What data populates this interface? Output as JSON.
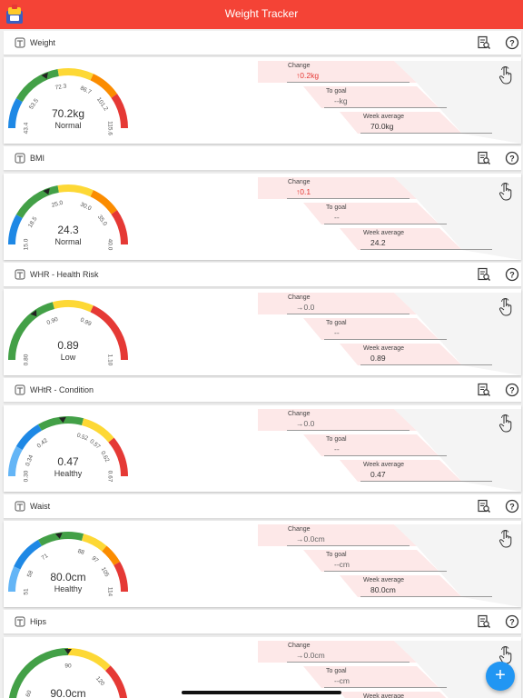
{
  "app": {
    "title": "Weight Tracker"
  },
  "colors": {
    "appbar": "#f44336",
    "fab": "#2196f3",
    "change_up": "#e53935",
    "stat_bg": "#fde8e8",
    "gauge_blue": "#1e88e5",
    "gauge_green": "#43a047",
    "gauge_yellow": "#fdd835",
    "gauge_orange": "#fb8c00",
    "gauge_red": "#e53935"
  },
  "sections": [
    {
      "id": "weight",
      "title": "Weight",
      "icon": "scale-icon",
      "value": "70.2kg",
      "status": "Normal",
      "ticks": [
        "43.4",
        "53.5",
        "72.3",
        "86.7",
        "101.2",
        "115.6"
      ],
      "change": "0.2kg",
      "change_direction": "up",
      "to_goal": "--kg",
      "week_average": "70.0kg",
      "pointer_fraction": 0.37
    },
    {
      "id": "bmi",
      "title": "BMI",
      "icon": "bmi-scale-icon",
      "value": "24.3",
      "status": "Normal",
      "ticks": [
        "15.0",
        "18.5",
        "25.0",
        "30.0",
        "35.0",
        "40.0"
      ],
      "change": "0.1",
      "change_direction": "up",
      "to_goal": "--",
      "week_average": "24.2",
      "pointer_fraction": 0.38
    },
    {
      "id": "whr",
      "title": "WHR - Health Risk",
      "icon": "waist-hip-ratio-icon",
      "value": "0.89",
      "status": "Low",
      "ticks": [
        "0.80",
        "0.90",
        "0.99",
        "1.10"
      ],
      "change": "0.0",
      "change_direction": "flat",
      "to_goal": "--",
      "week_average": "0.89",
      "pointer_fraction": 0.3
    },
    {
      "id": "whtr",
      "title": "WHtR - Condition",
      "icon": "waist-height-ratio-icon",
      "value": "0.47",
      "status": "Healthy",
      "ticks": [
        "0.30",
        "0.34",
        "0.42",
        "0.52",
        "0.57",
        "0.62",
        "0.67"
      ],
      "change": "0.0",
      "change_direction": "flat",
      "to_goal": "--",
      "week_average": "0.47",
      "pointer_fraction": 0.47
    },
    {
      "id": "waist",
      "title": "Waist",
      "icon": "waist-icon",
      "value": "80.0cm",
      "status": "Healthy",
      "ticks": [
        "51",
        "58",
        "71",
        "88",
        "97",
        "105",
        "114"
      ],
      "change": "0.0cm",
      "change_direction": "flat",
      "to_goal": "--cm",
      "week_average": "80.0cm",
      "pointer_fraction": 0.45
    },
    {
      "id": "hips",
      "title": "Hips",
      "icon": "hips-icon",
      "value": "90.0cm",
      "status": "",
      "ticks": [
        "60",
        "90",
        "120"
      ],
      "change": "0.0cm",
      "change_direction": "flat",
      "to_goal": "--cm",
      "week_average": "",
      "pointer_fraction": 0.5
    }
  ],
  "labels": {
    "change": "Change",
    "to_goal": "To goal",
    "week_average": "Week average"
  },
  "fab": {
    "label": "+"
  }
}
